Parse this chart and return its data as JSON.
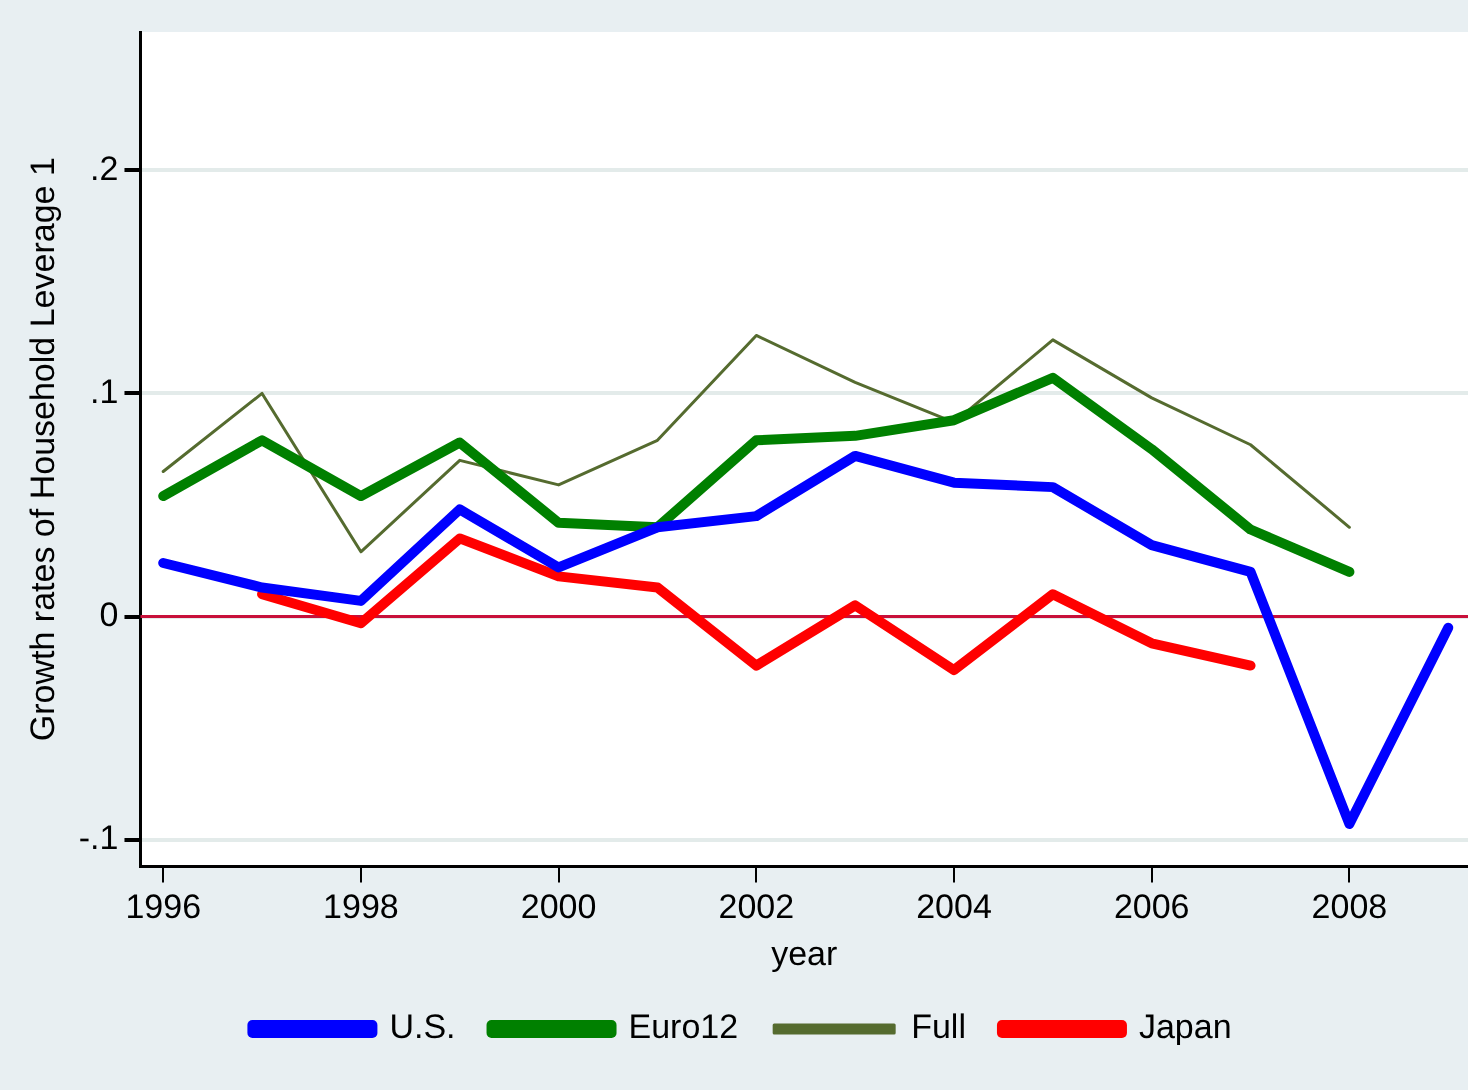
{
  "chart_data": {
    "type": "line",
    "xlabel": "year",
    "ylabel": "Growth rates of Household Leverage 1",
    "x": [
      1996,
      1997,
      1998,
      1999,
      2000,
      2001,
      2002,
      2003,
      2004,
      2005,
      2006,
      2007,
      2008,
      2009
    ],
    "series": [
      {
        "name": "U.S.",
        "color": "#0000ff",
        "values": [
          0.024,
          0.013,
          0.007,
          0.048,
          0.022,
          0.04,
          0.045,
          0.072,
          0.06,
          0.058,
          0.032,
          0.02,
          -0.093,
          -0.005
        ]
      },
      {
        "name": "Euro12",
        "color": "#008000",
        "values": [
          0.054,
          0.079,
          0.054,
          0.078,
          0.042,
          0.04,
          0.079,
          0.081,
          0.088,
          0.107,
          0.075,
          0.039,
          0.02,
          null
        ]
      },
      {
        "name": "Full",
        "color": "#556b2f",
        "values": [
          0.065,
          0.1,
          0.029,
          0.07,
          0.059,
          0.079,
          0.126,
          0.105,
          0.087,
          0.124,
          0.098,
          0.077,
          0.04,
          null
        ]
      },
      {
        "name": "Japan",
        "color": "#ff0000",
        "values": [
          null,
          0.01,
          -0.003,
          0.035,
          0.018,
          0.013,
          -0.022,
          0.005,
          -0.024,
          0.01,
          -0.012,
          -0.022,
          null,
          null
        ]
      }
    ],
    "xlim": [
      1995.77,
      2009.2
    ],
    "xticks": [
      1996,
      1998,
      2000,
      2002,
      2004,
      2006,
      2008
    ],
    "ylim": [
      -0.112,
      0.262
    ],
    "yticks": [
      {
        "value": -0.1,
        "label": "-.1"
      },
      {
        "value": 0,
        "label": "0"
      },
      {
        "value": 0.1,
        "label": ".1"
      },
      {
        "value": 0.2,
        "label": ".2"
      }
    ],
    "ref_lines": [
      {
        "axis": "y",
        "value": 0,
        "color": "#c8103a"
      }
    ],
    "grid": "y",
    "legend": "bottom",
    "marker": "none",
    "line_style": "solid"
  }
}
